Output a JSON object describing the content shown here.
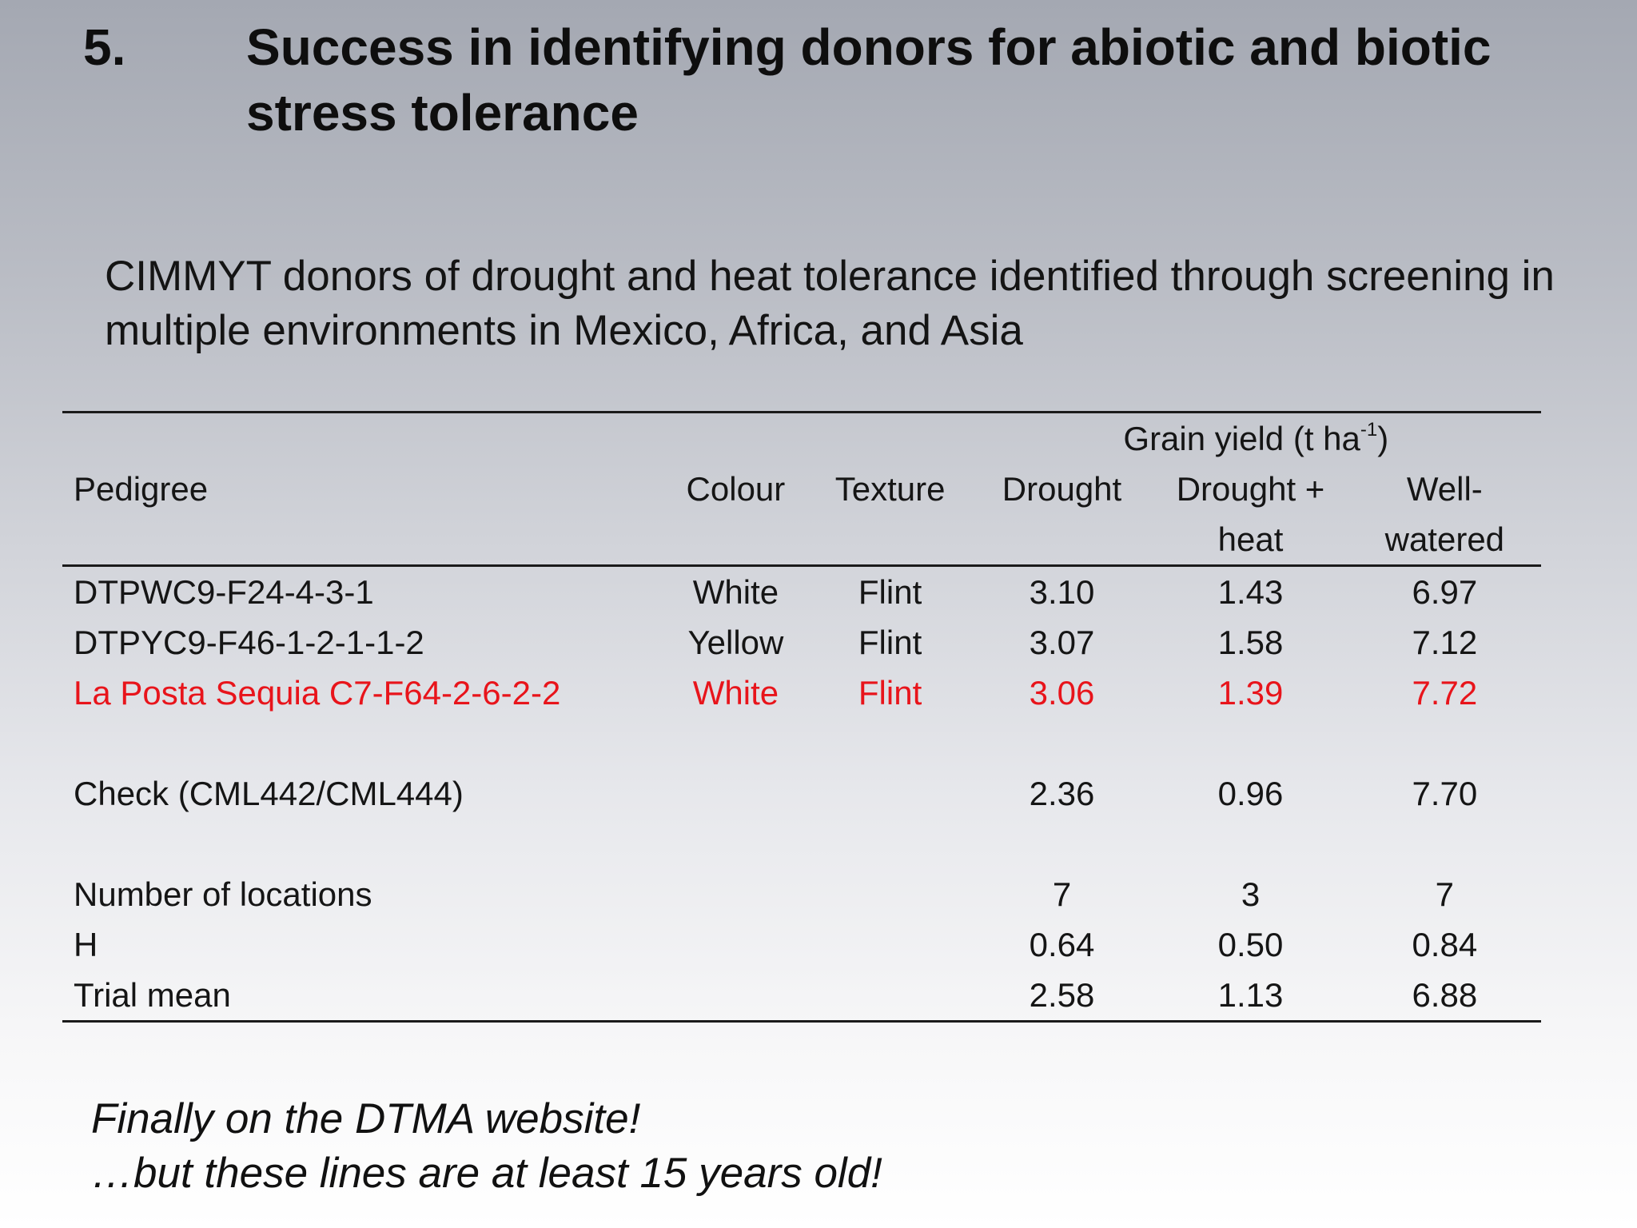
{
  "slide": {
    "number": "5.",
    "title": "Success in identifying donors for abiotic and biotic stress tolerance",
    "subtitle": "CIMMYT donors of drought and heat tolerance identified through screening in multiple environments in Mexico, Africa, and Asia"
  },
  "table": {
    "group_header": {
      "text": "Grain yield (t ha",
      "superscript": "-1",
      "close": ")"
    },
    "headers": {
      "pedigree": "Pedigree",
      "colour": "Colour",
      "texture": "Texture",
      "drought": "Drought",
      "drought_heat_line1": "Drought +",
      "drought_heat_line2": "heat",
      "well_watered_line1": "Well-",
      "well_watered_line2": "watered"
    },
    "rows": [
      {
        "pedigree": "DTPWC9-F24-4-3-1",
        "colour": "White",
        "texture": "Flint",
        "drought": "3.10",
        "drought_heat": "1.43",
        "well_watered": "6.97"
      },
      {
        "pedigree": "DTPYC9-F46-1-2-1-1-2",
        "colour": "Yellow",
        "texture": "Flint",
        "drought": "3.07",
        "drought_heat": "1.58",
        "well_watered": "7.12"
      },
      {
        "pedigree": "La Posta Sequia C7-F64-2-6-2-2",
        "colour": "White",
        "texture": "Flint",
        "drought": "3.06",
        "drought_heat": "1.39",
        "well_watered": "7.72"
      }
    ],
    "highlight_color": "#e8141b",
    "check": {
      "label": "Check (CML442/CML444)",
      "drought": "2.36",
      "drought_heat": "0.96",
      "well_watered": "7.70"
    },
    "stats": [
      {
        "label": "Number of locations",
        "drought": "7",
        "drought_heat": "3",
        "well_watered": "7"
      },
      {
        "label": "H",
        "drought": "0.64",
        "drought_heat": "0.50",
        "well_watered": "0.84"
      },
      {
        "label": "Trial mean",
        "drought": "2.58",
        "drought_heat": "1.13",
        "well_watered": "6.88"
      }
    ]
  },
  "footnote": {
    "line1": "Finally on the DTMA website!",
    "line2": "…but these lines are at least 15 years old!"
  }
}
